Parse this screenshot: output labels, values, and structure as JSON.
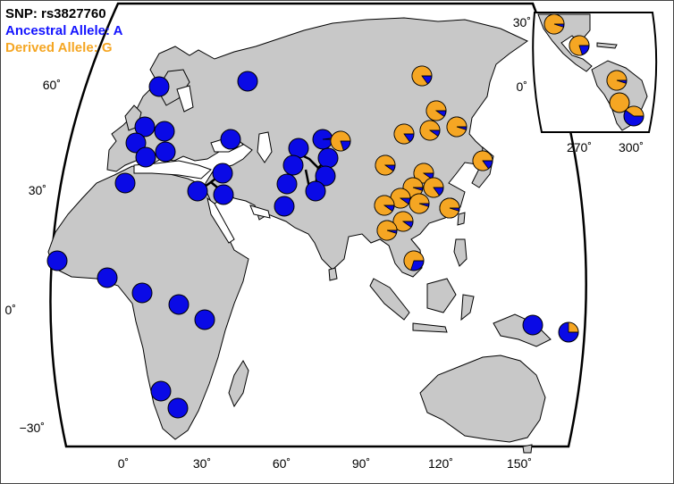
{
  "legend": {
    "snp": "SNP: rs3827760",
    "ancestral": "Ancestral Allele: A",
    "derived": "Derived Allele: G"
  },
  "colors": {
    "ancestral": "#0a0ae6",
    "derived": "#f5a623",
    "land": "#c8c8c8",
    "ocean": "#ffffff"
  },
  "map": {
    "projection": "Robinson-like world (Old World) with Americas inset",
    "main_ticks_x": [
      "0˚",
      "30˚",
      "60˚",
      "90˚",
      "120˚",
      "150˚"
    ],
    "main_ticks_y": [
      "60˚",
      "30˚",
      "0˚",
      "−30˚"
    ],
    "inset_ticks_x": [
      "270˚",
      "300˚"
    ],
    "inset_ticks_y": [
      "30˚",
      "0˚"
    ]
  },
  "populations": [
    {
      "id": "pop-scandinavia",
      "lon": 18,
      "lat": 60,
      "derived": 0.0
    },
    {
      "id": "pop-russia-north",
      "lon": 48,
      "lat": 61,
      "derived": 0.0
    },
    {
      "id": "pop-britain",
      "lon": 2,
      "lat": 53,
      "derived": 0.0
    },
    {
      "id": "pop-west-europe",
      "lon": 0,
      "lat": 48,
      "derived": 0.0
    },
    {
      "id": "pop-central-europe-1",
      "lon": 12,
      "lat": 49,
      "derived": 0.0
    },
    {
      "id": "pop-central-europe-2",
      "lon": 13,
      "lat": 44,
      "derived": 0.0
    },
    {
      "id": "pop-italy",
      "lon": 7,
      "lat": 42,
      "derived": 0.0
    },
    {
      "id": "pop-caucasus",
      "lon": 42,
      "lat": 46,
      "derived": 0.0
    },
    {
      "id": "pop-morocco",
      "lon": -4,
      "lat": 32,
      "derived": 0.0
    },
    {
      "id": "pop-levant-1",
      "lon": 36,
      "lat": 36,
      "derived": 0.0
    },
    {
      "id": "pop-levant-2",
      "lon": 33,
      "lat": 31,
      "derived": 0.0
    },
    {
      "id": "pop-levant-3",
      "lon": 28,
      "lat": 30,
      "derived": 0.0
    },
    {
      "id": "pop-central-asia-1",
      "lon": 68,
      "lat": 42,
      "derived": 0.0
    },
    {
      "id": "pop-central-asia-2",
      "lon": 74,
      "lat": 46,
      "derived": 0.02
    },
    {
      "id": "pop-central-asia-3",
      "lon": 76,
      "lat": 40,
      "derived": 0.0
    },
    {
      "id": "pop-central-asia-4",
      "lon": 75,
      "lat": 35,
      "derived": 0.0
    },
    {
      "id": "pop-pakistan-1",
      "lon": 66,
      "lat": 34,
      "derived": 0.0
    },
    {
      "id": "pop-pakistan-2",
      "lon": 63,
      "lat": 27,
      "derived": 0.0
    },
    {
      "id": "pop-pakistan-3",
      "lon": 69,
      "lat": 26,
      "derived": 0.0
    },
    {
      "id": "pop-pakistan-4",
      "lon": 71,
      "lat": 30,
      "derived": 0.0
    },
    {
      "id": "pop-yakut",
      "lon": 118,
      "lat": 63,
      "derived": 0.85
    },
    {
      "id": "pop-siberia-2",
      "lon": 123,
      "lat": 57,
      "derived": 0.9
    },
    {
      "id": "pop-siberia-3",
      "lon": 108,
      "lat": 51,
      "derived": 0.85
    },
    {
      "id": "pop-mongolia",
      "lon": 118,
      "lat": 51,
      "derived": 0.9
    },
    {
      "id": "pop-manchuria",
      "lon": 127,
      "lat": 52,
      "derived": 0.95
    },
    {
      "id": "pop-altai",
      "lon": 88,
      "lat": 50,
      "derived": 0.8
    },
    {
      "id": "pop-north-china",
      "lon": 100,
      "lat": 44,
      "derived": 0.9
    },
    {
      "id": "pop-japan",
      "lon": 135,
      "lat": 41,
      "derived": 0.85
    },
    {
      "id": "pop-china-1",
      "lon": 116,
      "lat": 39,
      "derived": 0.9
    },
    {
      "id": "pop-china-2",
      "lon": 115,
      "lat": 34,
      "derived": 0.95
    },
    {
      "id": "pop-china-3",
      "lon": 108,
      "lat": 33,
      "derived": 0.9
    },
    {
      "id": "pop-china-4",
      "lon": 118,
      "lat": 32,
      "derived": 0.85
    },
    {
      "id": "pop-china-5",
      "lon": 102,
      "lat": 30,
      "derived": 0.95
    },
    {
      "id": "pop-china-6",
      "lon": 112,
      "lat": 28,
      "derived": 0.92
    },
    {
      "id": "pop-china-7",
      "lon": 98,
      "lat": 26,
      "derived": 0.9
    },
    {
      "id": "pop-china-8",
      "lon": 107,
      "lat": 23,
      "derived": 0.9
    },
    {
      "id": "pop-taiwan",
      "lon": 120,
      "lat": 25,
      "derived": 0.95
    },
    {
      "id": "pop-south-china",
      "lon": 99,
      "lat": 21,
      "derived": 0.95
    },
    {
      "id": "pop-cambodia",
      "lon": 106,
      "lat": 11,
      "derived": 0.7
    },
    {
      "id": "pop-senegal",
      "lon": -15,
      "lat": 13,
      "derived": 0.0
    },
    {
      "id": "pop-nigeria",
      "lon": -3,
      "lat": 9,
      "derived": 0.0
    },
    {
      "id": "pop-cameroon",
      "lon": 12,
      "lat": 5,
      "derived": 0.0
    },
    {
      "id": "pop-congo-east",
      "lon": 25,
      "lat": 1,
      "derived": 0.0
    },
    {
      "id": "pop-kenya",
      "lon": 34,
      "lat": -2,
      "derived": 0.0
    },
    {
      "id": "pop-namibia",
      "lon": 17,
      "lat": -20,
      "derived": 0.0
    },
    {
      "id": "pop-south-africa",
      "lon": 24,
      "lat": -25,
      "derived": 0.0
    },
    {
      "id": "pop-new-guinea",
      "lon": 153,
      "lat": -3,
      "derived": 0.0
    },
    {
      "id": "pop-bougainville",
      "lon": 165,
      "lat": -7,
      "derived": 0.25
    }
  ],
  "inset_populations": [
    {
      "id": "pop-mexico",
      "lon": 255,
      "lat": 28,
      "derived": 0.95
    },
    {
      "id": "pop-central-america",
      "lon": 267,
      "lat": 17,
      "derived": 0.8
    },
    {
      "id": "pop-colombia",
      "lon": 287,
      "lat": 3,
      "derived": 0.95
    },
    {
      "id": "pop-peru",
      "lon": 290,
      "lat": -8,
      "derived": 1.0
    },
    {
      "id": "pop-brazil",
      "lon": 303,
      "lat": -13,
      "derived": 0.4
    }
  ]
}
